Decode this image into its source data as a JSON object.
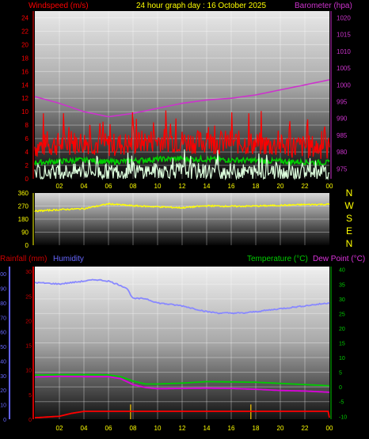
{
  "chart_data": [
    {
      "type": "line",
      "title": "24 hour graph day : 16 October 2025",
      "ylabel_left": "Windspeed (m/s)",
      "ylabel_right": "Barometer (hpa)",
      "x_ticks": [
        "02",
        "04",
        "06",
        "08",
        "10",
        "12",
        "14",
        "16",
        "18",
        "20",
        "22",
        "00"
      ],
      "x_range": [
        0,
        24
      ],
      "y_left_ticks": [
        "0",
        "2",
        "4",
        "6",
        "8",
        "10",
        "12",
        "14",
        "16",
        "18",
        "20",
        "22",
        "24"
      ],
      "ylim_left": [
        0,
        25
      ],
      "y_right_ticks": [
        "975",
        "980",
        "985",
        "990",
        "995",
        "1000",
        "1005",
        "1010",
        "1015",
        "1020"
      ],
      "ylim_right": [
        972,
        1022
      ],
      "grid": true,
      "series": [
        {
          "axis": "right",
          "color": "#cc33cc",
          "x": [
            0,
            2,
            4,
            6,
            8,
            10,
            12,
            14,
            16,
            18,
            20,
            22,
            24
          ],
          "values": [
            996.5,
            994.5,
            992.0,
            990.5,
            991.5,
            993.0,
            994.5,
            995.5,
            996.0,
            997.0,
            998.5,
            1000.0,
            1001.5
          ]
        },
        {
          "axis": "left",
          "color": "#ff0000",
          "noise": "high",
          "amplitude": 1.8,
          "x": [
            0,
            2,
            4,
            6,
            8,
            10,
            12,
            14,
            16,
            18,
            20,
            22,
            24
          ],
          "values": [
            4.8,
            5.2,
            5.5,
            5.0,
            5.3,
            5.8,
            5.6,
            5.4,
            5.5,
            5.2,
            4.9,
            4.8,
            4.6
          ]
        },
        {
          "axis": "left",
          "color": "#00cc00",
          "noise": "low",
          "amplitude": 0.4,
          "x": [
            0,
            2,
            4,
            6,
            8,
            10,
            12,
            14,
            16,
            18,
            20,
            22,
            24
          ],
          "values": [
            2.4,
            2.6,
            2.8,
            2.5,
            2.7,
            2.9,
            3.0,
            2.9,
            2.8,
            2.7,
            2.6,
            2.5,
            2.4
          ]
        },
        {
          "axis": "left",
          "color": "#ddffdd",
          "noise": "high",
          "amplitude": 1.2,
          "x": [
            0,
            2,
            4,
            6,
            8,
            10,
            12,
            14,
            16,
            18,
            20,
            22,
            24
          ],
          "values": [
            0.9,
            1.0,
            1.1,
            1.0,
            1.1,
            1.2,
            1.2,
            1.1,
            1.1,
            1.0,
            0.9,
            0.9,
            0.8
          ]
        }
      ]
    },
    {
      "type": "line",
      "y_ticks": [
        "0",
        "90",
        "180",
        "270",
        "360"
      ],
      "ylim": [
        0,
        360
      ],
      "compass": [
        "N",
        "W",
        "S",
        "E",
        "N"
      ],
      "x_range": [
        0,
        24
      ],
      "series": [
        {
          "color": "#ffff00",
          "noise": "low",
          "amplitude": 5,
          "x": [
            0,
            2,
            4,
            6,
            8,
            10,
            12,
            14,
            16,
            18,
            20,
            22,
            24
          ],
          "values": [
            235,
            245,
            252,
            285,
            272,
            265,
            258,
            272,
            268,
            270,
            275,
            280,
            282
          ]
        }
      ]
    },
    {
      "type": "line",
      "label_rainfall": "Rainfall (mm)",
      "label_humidity": "Humidity",
      "label_temperature": "Temperature (°C)",
      "label_dewpoint": "Dew Point (°C)",
      "x_ticks": [
        "02",
        "04",
        "06",
        "08",
        "10",
        "12",
        "14",
        "16",
        "18",
        "20",
        "22",
        "00"
      ],
      "x_range": [
        0,
        24
      ],
      "humidity_ticks": [
        "0",
        "10",
        "20",
        "30",
        "40",
        "50",
        "60",
        "70",
        "80",
        "90",
        "100"
      ],
      "humidity_range": [
        0,
        105
      ],
      "rain_ticks": [
        "0",
        "5",
        "10",
        "15",
        "20",
        "25",
        "30"
      ],
      "rain_range": [
        0,
        31
      ],
      "temp_ticks": [
        "-10",
        "-5",
        "0",
        "5",
        "10",
        "15",
        "20",
        "25",
        "30",
        "35",
        "40"
      ],
      "temp_range": [
        -11,
        41
      ],
      "series": [
        {
          "name": "Humidity",
          "axis": "humidity",
          "color": "#8888ff",
          "x": [
            0,
            2,
            4,
            5,
            6,
            7,
            7.5,
            8,
            9,
            10,
            12,
            14,
            15,
            16,
            17,
            18,
            20,
            22,
            24
          ],
          "values": [
            94,
            93,
            95,
            96,
            95,
            92,
            90,
            83,
            83,
            80,
            78,
            74,
            73,
            73,
            73,
            74,
            76,
            78,
            80
          ]
        },
        {
          "name": "Temperature (°C)",
          "axis": "temp",
          "color": "#00cc00",
          "x": [
            0,
            2,
            4,
            6,
            7,
            8,
            9,
            10,
            12,
            14,
            16,
            18,
            20,
            22,
            24
          ],
          "values": [
            4.0,
            4.2,
            4.2,
            4.1,
            3.5,
            2.0,
            1.0,
            1.0,
            1.3,
            1.8,
            1.7,
            1.6,
            1.2,
            0.8,
            0.4
          ]
        },
        {
          "name": "Dew Point (°C)",
          "axis": "temp",
          "color": "#dd00dd",
          "x": [
            0,
            2,
            4,
            6,
            7,
            8,
            9,
            10,
            12,
            14,
            16,
            18,
            20,
            22,
            24
          ],
          "values": [
            3.4,
            3.6,
            3.5,
            3.5,
            2.8,
            0.8,
            -0.2,
            -0.6,
            -0.5,
            -0.4,
            -0.5,
            -0.8,
            -1.2,
            -1.4,
            -1.8
          ]
        },
        {
          "name": "Rainfall (mm)",
          "axis": "rain",
          "color": "#ff0000",
          "x": [
            0,
            2,
            3,
            4,
            6,
            8,
            18,
            23.9,
            24
          ],
          "values": [
            0.3,
            0.6,
            1.2,
            1.6,
            1.6,
            1.6,
            1.6,
            1.6,
            0.3
          ]
        }
      ],
      "rain_bars": {
        "color": "#ffcc00",
        "x": [
          7.8,
          17.6
        ],
        "values": [
          3.0,
          3.0
        ]
      }
    }
  ],
  "colors": {
    "windspeed_label": "#ff0000",
    "barometer_label": "#cc33cc",
    "title": "#ffff00",
    "compass": "#ffff00",
    "rain_axis": "#cc0000",
    "humidity_axis": "#6666ff",
    "temp_axis": "#00cc00",
    "dewpoint_label": "#dd33dd"
  }
}
